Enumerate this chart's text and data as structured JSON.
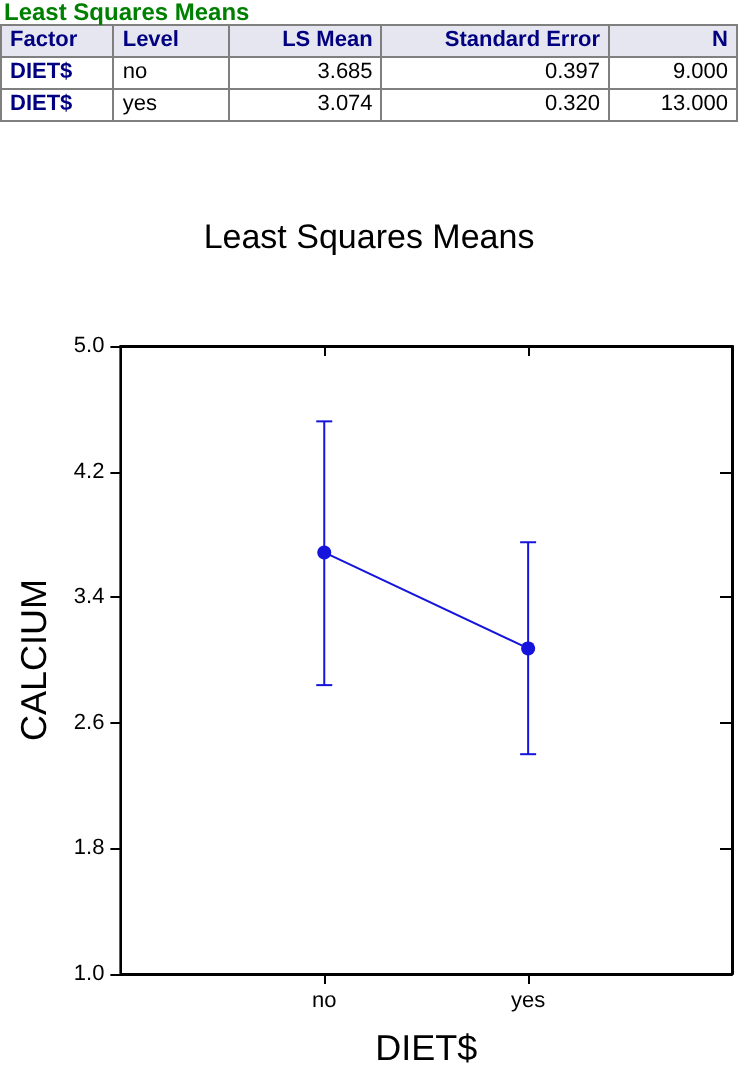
{
  "chart_data": {
    "type": "line",
    "title": "Least Squares Means",
    "xlabel": "DIET$",
    "ylabel": "CALCIUM",
    "categories": [
      null,
      "no",
      "yes",
      null
    ],
    "series": [
      {
        "color": "#1414dc",
        "values": [
          null,
          3.685,
          3.074,
          null
        ],
        "errors": [
          null,
          [
            2.84,
            4.52
          ],
          [
            2.4,
            3.75
          ],
          null
        ]
      }
    ],
    "ylim": [
      1.0,
      5.0
    ],
    "yticks": [
      {
        "value": 1,
        "label": "1.0"
      },
      {
        "value": 1.8,
        "label": "1.8"
      },
      {
        "value": 2.6,
        "label": "2.6"
      },
      {
        "value": 3.4,
        "label": "3.4"
      },
      {
        "value": 4.2,
        "label": "4.2"
      },
      {
        "value": 5,
        "label": "5.0"
      }
    ],
    "marker": "circle",
    "line_style": "solid",
    "grid": false,
    "annotations": [
      "Least Squares Means",
      "Factor",
      "Level",
      "LS Mean",
      "Standard Error",
      "N",
      "DIET$",
      "no",
      "3.685",
      "0.397",
      "9.000",
      "DIET$",
      "yes",
      "3.074",
      "0.320",
      "13.000"
    ]
  }
}
